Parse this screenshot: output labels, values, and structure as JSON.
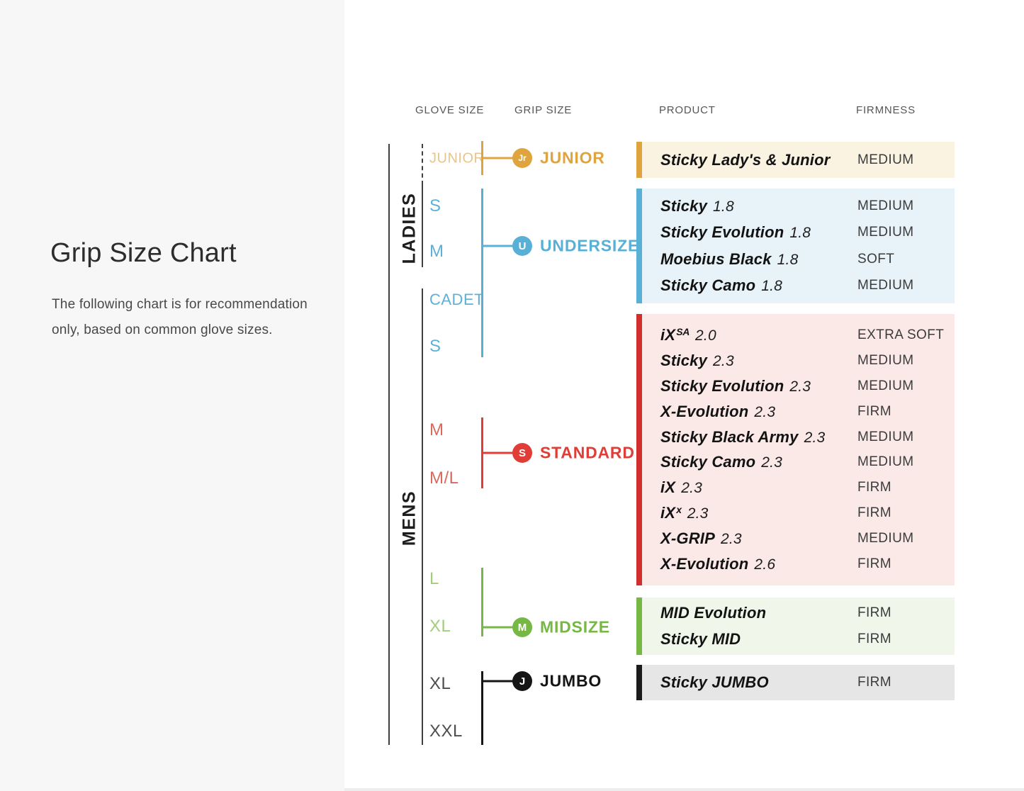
{
  "page": {
    "title": "Grip Size Chart",
    "description_line1": "The following chart is for recommendation",
    "description_line2": "only, based on common glove sizes."
  },
  "headers": {
    "glove_size": "GLOVE SIZE",
    "grip_size": "GRIP SIZE",
    "product": "PRODUCT",
    "firmness": "FIRMNESS"
  },
  "tree": {
    "ladies_label": "LADIES",
    "mens_label": "MENS",
    "glove_sizes": [
      {
        "label": "JUNIOR",
        "group": "junior"
      },
      {
        "label": "S",
        "group": "undersize"
      },
      {
        "label": "M",
        "group": "undersize"
      },
      {
        "label": "CADET",
        "group": "undersize"
      },
      {
        "label": "S",
        "group": "undersize"
      },
      {
        "label": "M",
        "group": "standard"
      },
      {
        "label": "M/L",
        "group": "standard"
      },
      {
        "label": "L",
        "group": "midsize"
      },
      {
        "label": "XL",
        "group": "midsize"
      },
      {
        "label": "XL",
        "group": "jumbo"
      },
      {
        "label": "XXL",
        "group": "jumbo"
      }
    ]
  },
  "grip_groups": [
    {
      "id": "junior",
      "badge": "Jr",
      "label": "JUNIOR",
      "color": "#dfa43e"
    },
    {
      "id": "undersize",
      "badge": "U",
      "label": "UNDERSIZE",
      "color": "#59b0d7"
    },
    {
      "id": "standard",
      "badge": "S",
      "label": "STANDARD",
      "color": "#e03d37"
    },
    {
      "id": "midsize",
      "badge": "M",
      "label": "MIDSIZE",
      "color": "#77b845"
    },
    {
      "id": "jumbo",
      "badge": "J",
      "label": "JUMBO",
      "color": "#151515"
    }
  ],
  "product_boxes": [
    {
      "group": "junior",
      "bar_color": "#dfa43e",
      "bg_color": "#fbf3e2",
      "products": [
        {
          "name": "Sticky Lady's & Junior",
          "number": "",
          "firmness": "MEDIUM"
        }
      ]
    },
    {
      "group": "undersize",
      "bar_color": "#59b0d7",
      "bg_color": "#e7f3f9",
      "products": [
        {
          "name": "Sticky",
          "number": "1.8",
          "firmness": "MEDIUM"
        },
        {
          "name": "Sticky Evolution",
          "number": "1.8",
          "firmness": "MEDIUM"
        },
        {
          "name": "Moebius Black",
          "number": "1.8",
          "firmness": "SOFT"
        },
        {
          "name": "Sticky Camo",
          "number": "1.8",
          "firmness": "MEDIUM"
        }
      ]
    },
    {
      "group": "standard",
      "bar_color": "#d02f2b",
      "bg_color": "#fbe9e8",
      "products": [
        {
          "name": "iX",
          "sup": "SA",
          "number": "2.0",
          "firmness": "EXTRA SOFT"
        },
        {
          "name": "Sticky",
          "number": "2.3",
          "firmness": "MEDIUM"
        },
        {
          "name": "Sticky Evolution",
          "number": "2.3",
          "firmness": "MEDIUM"
        },
        {
          "name": "X-Evolution",
          "number": "2.3",
          "firmness": "FIRM"
        },
        {
          "name": "Sticky Black Army",
          "number": "2.3",
          "firmness": "MEDIUM"
        },
        {
          "name": "Sticky Camo",
          "number": "2.3",
          "firmness": "MEDIUM"
        },
        {
          "name": "iX",
          "number": "2.3",
          "firmness": "FIRM"
        },
        {
          "name": "iX",
          "sup": "x",
          "number": "2.3",
          "firmness": "FIRM"
        },
        {
          "name": "X-GRIP",
          "number": "2.3",
          "firmness": "MEDIUM"
        },
        {
          "name": "X-Evolution",
          "number": "2.6",
          "firmness": "FIRM"
        }
      ]
    },
    {
      "group": "midsize",
      "bar_color": "#77b845",
      "bg_color": "#f0f6e9",
      "products": [
        {
          "name": "MID Evolution",
          "number": "",
          "firmness": "FIRM"
        },
        {
          "name": "Sticky MID",
          "number": "",
          "firmness": "FIRM"
        }
      ]
    },
    {
      "group": "jumbo",
      "bar_color": "#1b1b1b",
      "bg_color": "#e6e6e6",
      "products": [
        {
          "name": "Sticky JUMBO",
          "number": "",
          "firmness": "FIRM"
        }
      ]
    }
  ]
}
